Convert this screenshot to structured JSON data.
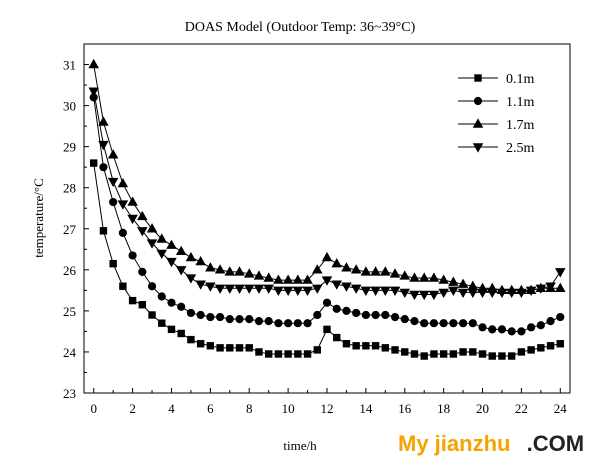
{
  "chart_data": {
    "type": "line",
    "title": "DOAS Model (Outdoor Temp: 36~39°C)",
    "xlabel": "time/h",
    "ylabel": "temperature/°C",
    "xlim": [
      -0.5,
      24.5
    ],
    "ylim": [
      23,
      31.5
    ],
    "xticks": [
      0,
      2,
      4,
      6,
      8,
      10,
      12,
      14,
      16,
      18,
      20,
      22,
      24
    ],
    "yticks": [
      23,
      24,
      25,
      26,
      27,
      28,
      29,
      30,
      31
    ],
    "grid": false,
    "legend_position": "top-right",
    "x": [
      0,
      0.5,
      1,
      1.5,
      2,
      2.5,
      3,
      3.5,
      4,
      4.5,
      5,
      5.5,
      6,
      6.5,
      7,
      7.5,
      8,
      8.5,
      9,
      9.5,
      10,
      10.5,
      11,
      11.5,
      12,
      12.5,
      13,
      13.5,
      14,
      14.5,
      15,
      15.5,
      16,
      16.5,
      17,
      17.5,
      18,
      18.5,
      19,
      19.5,
      20,
      20.5,
      21,
      21.5,
      22,
      22.5,
      23,
      23.5,
      24
    ],
    "series": [
      {
        "name": "0.1m",
        "marker": "square",
        "values": [
          28.6,
          26.95,
          26.15,
          25.6,
          25.25,
          25.15,
          24.9,
          24.7,
          24.55,
          24.45,
          24.3,
          24.2,
          24.15,
          24.1,
          24.1,
          24.1,
          24.1,
          24.0,
          23.95,
          23.95,
          23.95,
          23.95,
          23.95,
          24.05,
          24.55,
          24.35,
          24.2,
          24.15,
          24.15,
          24.15,
          24.1,
          24.05,
          24.0,
          23.95,
          23.9,
          23.95,
          23.95,
          23.95,
          24.0,
          24.0,
          23.95,
          23.9,
          23.9,
          23.9,
          24.0,
          24.05,
          24.1,
          24.15,
          24.2
        ]
      },
      {
        "name": "1.1m",
        "marker": "circle",
        "values": [
          30.2,
          28.5,
          27.65,
          26.9,
          26.35,
          25.95,
          25.6,
          25.35,
          25.2,
          25.1,
          24.95,
          24.9,
          24.85,
          24.85,
          24.8,
          24.8,
          24.8,
          24.75,
          24.75,
          24.7,
          24.7,
          24.7,
          24.7,
          24.9,
          25.2,
          25.05,
          25.0,
          24.95,
          24.9,
          24.9,
          24.9,
          24.85,
          24.8,
          24.75,
          24.7,
          24.7,
          24.7,
          24.7,
          24.7,
          24.7,
          24.6,
          24.55,
          24.55,
          24.5,
          24.5,
          24.6,
          24.65,
          24.75,
          24.85
        ]
      },
      {
        "name": "1.7m",
        "marker": "triangle-up",
        "values": [
          31.0,
          29.6,
          28.8,
          28.1,
          27.65,
          27.3,
          27.0,
          26.75,
          26.6,
          26.45,
          26.3,
          26.2,
          26.05,
          26.0,
          25.95,
          25.95,
          25.9,
          25.85,
          25.8,
          25.75,
          25.75,
          25.75,
          25.75,
          26.0,
          26.3,
          26.15,
          26.05,
          26.0,
          25.95,
          25.95,
          25.95,
          25.9,
          25.85,
          25.8,
          25.8,
          25.8,
          25.75,
          25.7,
          25.65,
          25.6,
          25.55,
          25.55,
          25.5,
          25.5,
          25.5,
          25.5,
          25.55,
          25.55,
          25.55
        ]
      },
      {
        "name": "2.5m",
        "marker": "triangle-down",
        "values": [
          30.35,
          29.05,
          28.15,
          27.6,
          27.25,
          26.95,
          26.65,
          26.4,
          26.2,
          26.0,
          25.8,
          25.65,
          25.6,
          25.55,
          25.55,
          25.55,
          25.55,
          25.55,
          25.55,
          25.5,
          25.5,
          25.5,
          25.5,
          25.55,
          25.75,
          25.65,
          25.6,
          25.55,
          25.5,
          25.5,
          25.5,
          25.5,
          25.45,
          25.4,
          25.4,
          25.4,
          25.45,
          25.5,
          25.45,
          25.45,
          25.45,
          25.45,
          25.45,
          25.45,
          25.45,
          25.5,
          25.55,
          25.6,
          25.95
        ]
      }
    ]
  },
  "watermark": {
    "main": "My jianzhu",
    "suffix": ".COM",
    "main_color": "#f5a300",
    "suffix_color": "#222222"
  }
}
